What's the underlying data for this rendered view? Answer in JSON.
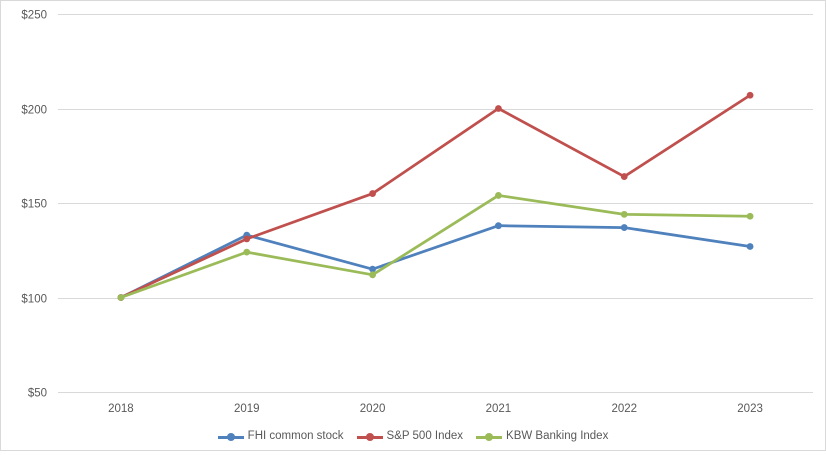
{
  "chart_data": {
    "type": "line",
    "title": "",
    "xlabel": "",
    "ylabel": "",
    "categories": [
      "2018",
      "2019",
      "2020",
      "2021",
      "2022",
      "2023"
    ],
    "series": [
      {
        "name": "FHI common stock",
        "color": "#4F81BD",
        "values": [
          100,
          133,
          115,
          138,
          137,
          127
        ]
      },
      {
        "name": "S&P 500 Index",
        "color": "#C0504D",
        "values": [
          100,
          131,
          155,
          200,
          164,
          207
        ]
      },
      {
        "name": "KBW Banking Index",
        "color": "#9BBB59",
        "values": [
          100,
          124,
          112,
          154,
          144,
          143
        ]
      }
    ],
    "ylim": [
      50,
      250
    ],
    "y_ticks": [
      "$50",
      "$100",
      "$150",
      "$200",
      "$250"
    ],
    "y_tick_values": [
      50,
      100,
      150,
      200,
      250
    ],
    "grid": true,
    "legend_position": "bottom"
  },
  "styles": {
    "grid_color": "#D9D9D9",
    "border_color": "#D9D9D9",
    "text_color": "#595959",
    "background": "#FFFFFF"
  }
}
